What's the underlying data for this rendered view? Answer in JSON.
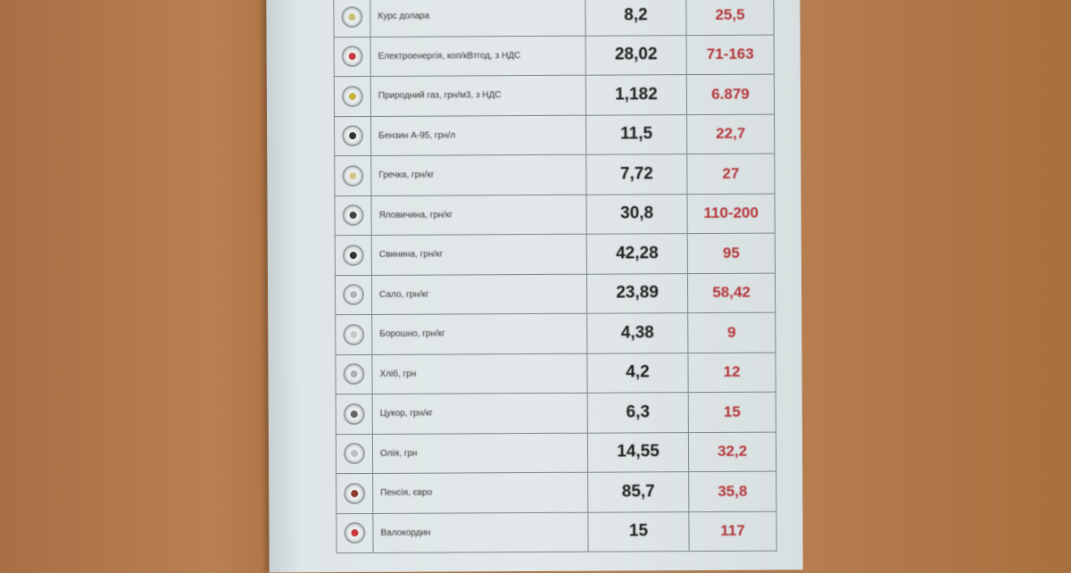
{
  "rows": [
    {
      "label": "Курс долара",
      "icon": "dollar-coin-icon",
      "color": "#c9c27a",
      "old": "8,2",
      "new": "25,5"
    },
    {
      "label": "Електроенергія, коп/кВтгод, з НДС",
      "icon": "electricity-icon",
      "color": "#c8383c",
      "old": "28,02",
      "new": "71-163"
    },
    {
      "label": "Природний газ, грн/м3, з НДС",
      "icon": "gas-flame-icon",
      "color": "#c9b236",
      "old": "1,182",
      "new": "6.879"
    },
    {
      "label": "Бензин А-95, грн/л",
      "icon": "fuel-pump-icon",
      "color": "#333333",
      "old": "11,5",
      "new": "22,7"
    },
    {
      "label": "Гречка, грн/кг",
      "icon": "buckwheat-icon",
      "color": "#d4c48a",
      "old": "7,72",
      "new": "27"
    },
    {
      "label": "Яловичина, грн/кг",
      "icon": "beef-icon",
      "color": "#444444",
      "old": "30,8",
      "new": "110-200"
    },
    {
      "label": "Свинина, грн/кг",
      "icon": "pork-icon",
      "color": "#333333",
      "old": "42,28",
      "new": "95"
    },
    {
      "label": "Сало, грн/кг",
      "icon": "lard-icon",
      "color": "#b0b6b8",
      "old": "23,89",
      "new": "58,42"
    },
    {
      "label": "Борошно, грн/кг",
      "icon": "flour-icon",
      "color": "#c4c9ca",
      "old": "4,38",
      "new": "9"
    },
    {
      "label": "Хліб, грн",
      "icon": "bread-icon",
      "color": "#a9b0b2",
      "old": "4,2",
      "new": "12"
    },
    {
      "label": "Цукор, грн/кг",
      "icon": "sugar-icon",
      "color": "#666666",
      "old": "6,3",
      "new": "15"
    },
    {
      "label": "Олія, грн",
      "icon": "oil-icon",
      "color": "#b9c0c2",
      "old": "14,55",
      "new": "32,2"
    },
    {
      "label": "Пенсія, євро",
      "icon": "pension-icon",
      "color": "#8a3a2a",
      "old": "85,7",
      "new": "35,8"
    },
    {
      "label": "Валокордин",
      "icon": "heart-icon",
      "color": "#c8383c",
      "old": "15",
      "new": "117"
    }
  ]
}
